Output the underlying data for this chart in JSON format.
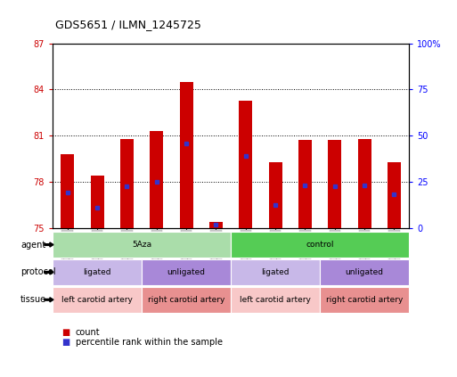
{
  "title": "GDS5651 / ILMN_1245725",
  "samples": [
    "GSM1356646",
    "GSM1356647",
    "GSM1356648",
    "GSM1356649",
    "GSM1356650",
    "GSM1356651",
    "GSM1356640",
    "GSM1356641",
    "GSM1356642",
    "GSM1356643",
    "GSM1356644",
    "GSM1356645"
  ],
  "bar_tops": [
    79.8,
    78.4,
    80.8,
    81.3,
    84.5,
    75.4,
    83.3,
    79.3,
    80.7,
    80.7,
    80.8,
    79.3
  ],
  "blue_pos": [
    77.3,
    76.3,
    77.7,
    78.0,
    80.5,
    75.2,
    79.7,
    76.5,
    77.8,
    77.7,
    77.8,
    77.2
  ],
  "ymin": 75,
  "ymax": 87,
  "yticks_left": [
    75,
    78,
    81,
    84,
    87
  ],
  "yticks_right_pct": [
    0,
    25,
    50,
    75,
    100
  ],
  "bar_color": "#cc0000",
  "blue_color": "#3333cc",
  "agent_groups": [
    {
      "label": "5Aza",
      "start": 0,
      "end": 6,
      "color": "#aaddaa"
    },
    {
      "label": "control",
      "start": 6,
      "end": 12,
      "color": "#55cc55"
    }
  ],
  "protocol_groups": [
    {
      "label": "ligated",
      "start": 0,
      "end": 3,
      "color": "#c8b8e8"
    },
    {
      "label": "unligated",
      "start": 3,
      "end": 6,
      "color": "#a888d8"
    },
    {
      "label": "ligated",
      "start": 6,
      "end": 9,
      "color": "#c8b8e8"
    },
    {
      "label": "unligated",
      "start": 9,
      "end": 12,
      "color": "#a888d8"
    }
  ],
  "tissue_groups": [
    {
      "label": "left carotid artery",
      "start": 0,
      "end": 3,
      "color": "#f8c8c8"
    },
    {
      "label": "right carotid artery",
      "start": 3,
      "end": 6,
      "color": "#e89090"
    },
    {
      "label": "left carotid artery",
      "start": 6,
      "end": 9,
      "color": "#f8c8c8"
    },
    {
      "label": "right carotid artery",
      "start": 9,
      "end": 12,
      "color": "#e89090"
    }
  ],
  "legend_count_color": "#cc0000",
  "legend_blue_color": "#3333cc",
  "legend_count_label": "count",
  "legend_percentile_label": "percentile rank within the sample"
}
